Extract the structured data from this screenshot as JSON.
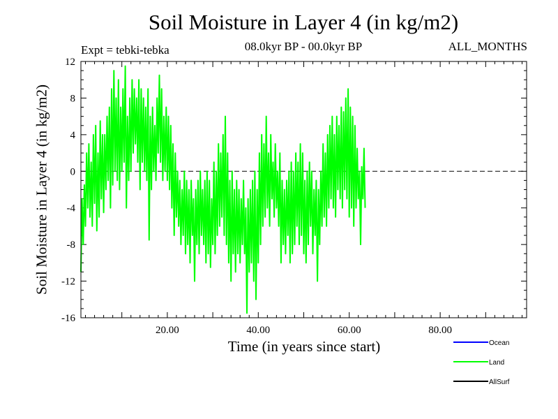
{
  "chart_data": {
    "type": "line",
    "title": "Soil Moisture in Layer 4 (in kg/m2)",
    "subtitle_left": "Expt = tebki-tebka",
    "subtitle_center": "08.0kyr BP - 00.0kyr BP",
    "subtitle_right": "ALL_MONTHS",
    "xlabel": "Time (in years since start)",
    "ylabel": "Soil Moisture in Layer 4 (in kg/m2)",
    "xlim": [
      1,
      99
    ],
    "ylim": [
      -16,
      12
    ],
    "x_ticks": [
      20,
      40,
      60,
      80
    ],
    "x_tick_labels": [
      "20.00",
      "40.00",
      "60.00",
      "80.00"
    ],
    "y_ticks": [
      -16,
      -12,
      -8,
      -4,
      0,
      4,
      8,
      12
    ],
    "y_tick_labels": [
      "-16",
      "-12",
      "-8",
      "-4",
      "0",
      "4",
      "8",
      "12"
    ],
    "reference_line": 0,
    "legend_position": "bottom-right",
    "series": [
      {
        "name": "Ocean",
        "color": "#0000ff",
        "values": []
      },
      {
        "name": "Land",
        "color": "#00ff00",
        "x_start": 1,
        "x_step": 0.25,
        "values": [
          -11.0,
          -3.0,
          -8.0,
          -1.5,
          -6.0,
          2.0,
          -4.0,
          3.0,
          -5.0,
          1.0,
          -6.0,
          4.0,
          -3.5,
          5.0,
          -6.5,
          2.0,
          -5.0,
          5.5,
          -3.0,
          4.0,
          -4.5,
          4.0,
          -2.0,
          6.0,
          -1.0,
          7.0,
          -4.0,
          9.0,
          -1.5,
          11.0,
          0.0,
          8.0,
          -1.0,
          10.0,
          -2.0,
          7.0,
          0.0,
          9.0,
          1.0,
          11.5,
          -4.0,
          6.0,
          -1.0,
          8.0,
          0.0,
          10.0,
          2.0,
          9.0,
          3.0,
          8.0,
          1.0,
          10.0,
          -2.0,
          9.0,
          1.0,
          8.0,
          0.0,
          7.0,
          -1.0,
          9.0,
          -7.5,
          6.0,
          -2.0,
          7.0,
          0.0,
          5.0,
          -1.0,
          8.0,
          2.0,
          10.5,
          1.0,
          9.0,
          -1.0,
          6.0,
          0.0,
          7.0,
          -1.0,
          6.0,
          -2.0,
          5.0,
          -4.0,
          3.0,
          -7.0,
          2.0,
          -5.0,
          0.0,
          -6.0,
          -1.0,
          -8.0,
          -2.0,
          -7.0,
          0.0,
          -9.0,
          -1.0,
          -8.0,
          -2.0,
          -10.0,
          -1.0,
          -7.0,
          -3.0,
          -12.0,
          -2.0,
          -8.0,
          -1.0,
          -9.0,
          0.0,
          -7.0,
          -2.0,
          -8.0,
          -1.0,
          -10.0,
          0.0,
          -9.0,
          -1.0,
          -10.5,
          -3.0,
          -8.0,
          1.0,
          -9.0,
          0.0,
          -7.0,
          3.0,
          -6.0,
          2.0,
          -5.0,
          4.0,
          -7.0,
          6.0,
          -8.0,
          2.0,
          -10.0,
          -1.0,
          -12.0,
          0.0,
          -9.0,
          -2.0,
          -11.0,
          -1.0,
          -9.0,
          -2.0,
          -10.0,
          -3.0,
          -8.0,
          -1.0,
          -9.0,
          -4.0,
          -15.5,
          -3.0,
          -11.0,
          -2.0,
          -10.0,
          -1.0,
          -12.0,
          0.0,
          -14.0,
          -2.0,
          -10.0,
          2.0,
          -8.0,
          4.0,
          -6.0,
          3.0,
          -5.0,
          6.0,
          -4.0,
          2.0,
          -6.0,
          4.0,
          -3.0,
          1.0,
          -5.0,
          3.0,
          -4.0,
          0.0,
          -6.0,
          2.0,
          -10.0,
          -1.0,
          -8.0,
          -2.0,
          -9.0,
          -1.0,
          -7.0,
          0.0,
          -10.0,
          1.0,
          -9.0,
          0.0,
          -8.0,
          2.0,
          -6.0,
          1.0,
          -8.0,
          3.0,
          -7.0,
          2.0,
          -9.0,
          -1.0,
          -10.0,
          0.0,
          -8.0,
          1.0,
          -6.0,
          0.0,
          -9.0,
          -2.0,
          -7.0,
          -1.0,
          -12.0,
          -2.0,
          -8.0,
          0.0,
          -6.0,
          3.0,
          -5.0,
          2.0,
          -6.0,
          4.0,
          -4.0,
          5.0,
          -3.0,
          6.0,
          -4.0,
          4.0,
          -5.0,
          6.0,
          -2.0,
          5.0,
          -3.0,
          7.0,
          -4.0,
          6.5,
          -2.0,
          8.0,
          -3.0,
          9.0,
          -5.0,
          7.0,
          -4.0,
          6.0,
          -6.0,
          5.0,
          -4.0,
          2.5,
          -3.0,
          0.0,
          -8.0,
          0.5,
          -3.0,
          2.5,
          -4.0
        ]
      },
      {
        "name": "AllSurf",
        "color": "#000000",
        "values": []
      }
    ]
  }
}
